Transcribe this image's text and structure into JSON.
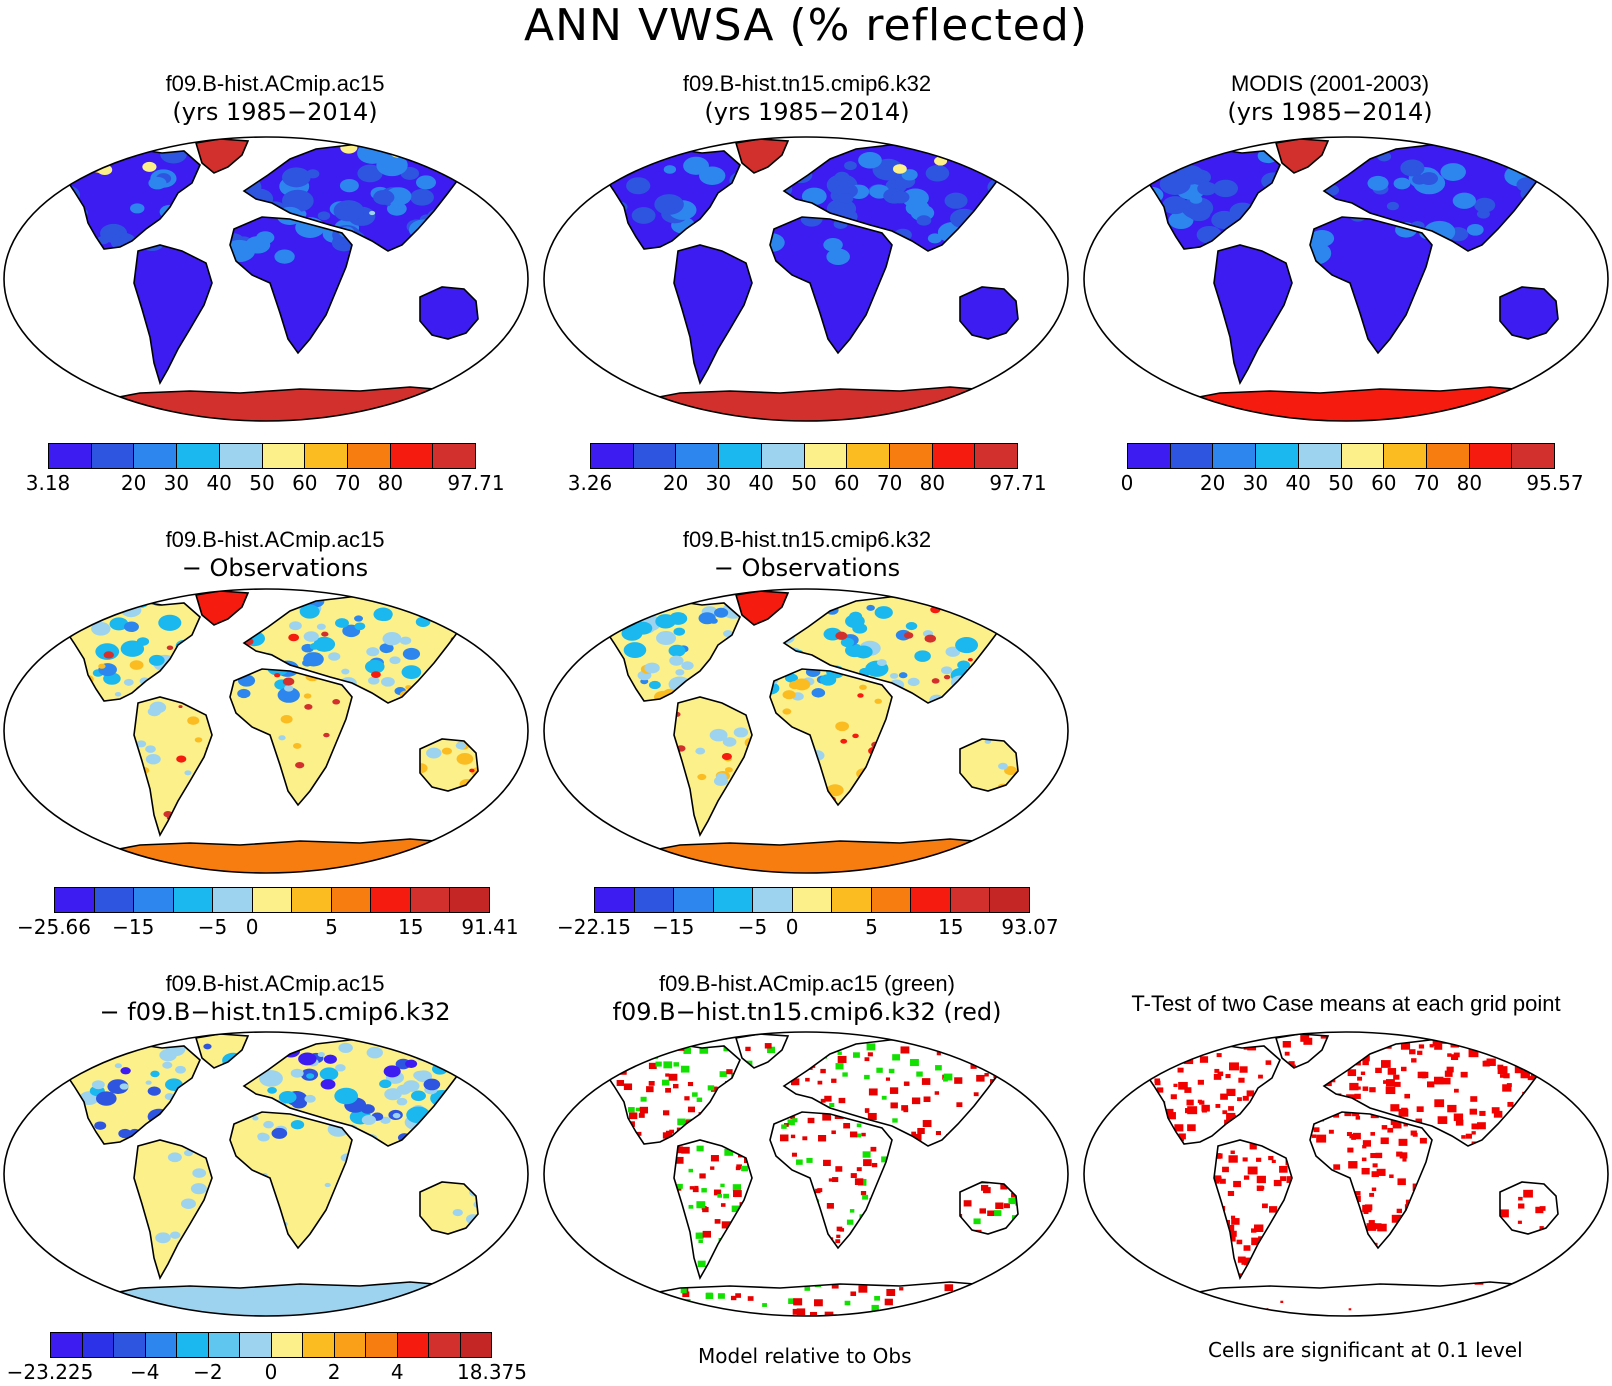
{
  "title": "ANN VWSA (% reflected)",
  "palettes": {
    "abs": [
      "#3d1cf2",
      "#2d55e0",
      "#2c86ee",
      "#1bb8ef",
      "#9ed3ef",
      "#fbf08a",
      "#fbbc22",
      "#f77d10",
      "#f61b0f",
      "#d2302d"
    ],
    "diff": [
      "#3d1cf2",
      "#2d55e0",
      "#2c86ee",
      "#1bb8ef",
      "#9ed3ef",
      "#fbf08a",
      "#fbbc22",
      "#f77d10",
      "#f61b0f",
      "#d2302d",
      "#c42626"
    ],
    "diff3": [
      "#3d1cf2",
      "#2b32e8",
      "#2d55e0",
      "#2c86ee",
      "#1bb8ef",
      "#5fc6ef",
      "#9ed3ef",
      "#fbf08a",
      "#fbbc22",
      "#f9a018",
      "#f77d10",
      "#f61b0f",
      "#d2302d",
      "#c42626"
    ]
  },
  "panels": [
    {
      "id": "p1",
      "title_line1": "f09.B-hist.ACmip.ac15",
      "title_line2": "(yrs 1985−2014)",
      "fill": "abs",
      "colorbar": {
        "palette": "abs",
        "labels": [
          "3.18",
          "20",
          "30",
          "40",
          "50",
          "60",
          "70",
          "80",
          "97.71"
        ],
        "label_edges": [
          0,
          2,
          3,
          4,
          5,
          6,
          7,
          8,
          10
        ]
      }
    },
    {
      "id": "p2",
      "title_line1": "f09.B-hist.tn15.cmip6.k32",
      "title_line2": "(yrs 1985−2014)",
      "fill": "abs",
      "colorbar": {
        "palette": "abs",
        "labels": [
          "3.26",
          "20",
          "30",
          "40",
          "50",
          "60",
          "70",
          "80",
          "97.71"
        ],
        "label_edges": [
          0,
          2,
          3,
          4,
          5,
          6,
          7,
          8,
          10
        ]
      }
    },
    {
      "id": "p3",
      "title_line1": "MODIS (2001-2003)",
      "title_line2": "(yrs 1985−2014)",
      "fill": "abs",
      "colorbar": {
        "palette": "abs",
        "labels": [
          "0",
          "20",
          "30",
          "40",
          "50",
          "60",
          "70",
          "80",
          "95.57"
        ],
        "label_edges": [
          0,
          2,
          3,
          4,
          5,
          6,
          7,
          8,
          10
        ]
      }
    },
    {
      "id": "p4",
      "title_line1": "f09.B-hist.ACmip.ac15",
      "title_line2": "− Observations",
      "fill": "diff",
      "colorbar": {
        "palette": "diff",
        "labels": [
          "−25.66",
          "−15",
          "−5",
          "0",
          "5",
          "15",
          "91.41"
        ],
        "label_edges": [
          0,
          2,
          4,
          5,
          7,
          9,
          11
        ]
      }
    },
    {
      "id": "p5",
      "title_line1": "f09.B-hist.tn15.cmip6.k32",
      "title_line2": "− Observations",
      "fill": "diff",
      "colorbar": {
        "palette": "diff",
        "labels": [
          "−22.15",
          "−15",
          "−5",
          "0",
          "5",
          "15",
          "93.07"
        ],
        "label_edges": [
          0,
          2,
          4,
          5,
          7,
          9,
          11
        ]
      }
    },
    {
      "id": "p6",
      "title_line1": "f09.B-hist.ACmip.ac15",
      "title_line2": "− f09.B−hist.tn15.cmip6.k32",
      "fill": "diff3",
      "colorbar": {
        "palette": "diff3",
        "labels": [
          "−23.225",
          "−4",
          "−2",
          "0",
          "2",
          "4",
          "18.375"
        ],
        "label_edges": [
          0,
          3,
          5,
          7,
          9,
          11,
          14
        ]
      }
    },
    {
      "id": "p7",
      "title_line1": "f09.B-hist.ACmip.ac15 (green)",
      "title_line2": "f09.B−hist.tn15.cmip6.k32 (red)",
      "fill": "sig"
    },
    {
      "id": "p8",
      "title_line1": "T-Test of two Case means at each grid point",
      "title_line2": "",
      "fill": "ttest"
    }
  ],
  "notes": {
    "model_relative": "Model relative to Obs",
    "cells_significant": "Cells are significant at 0.1 level"
  }
}
